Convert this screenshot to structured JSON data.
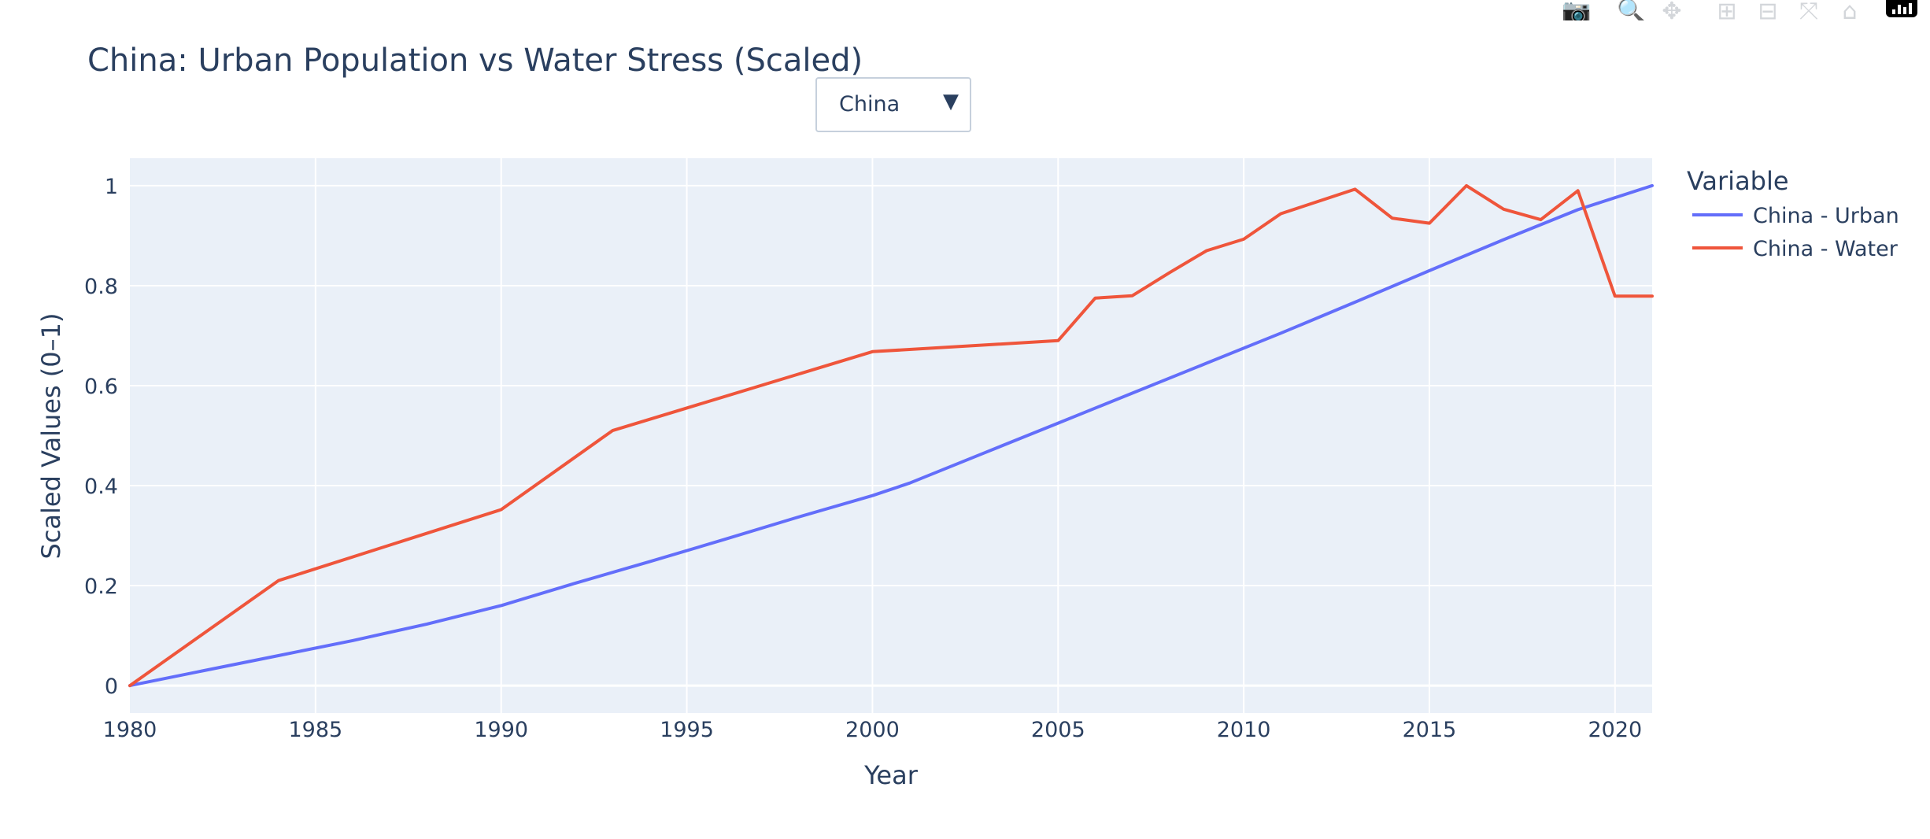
{
  "dropdown": {
    "selected": "China"
  },
  "modebar": {
    "icons": [
      "camera-icon",
      "zoom-icon",
      "pan-icon",
      "zoom-in-icon",
      "zoom-out-icon",
      "autoscale-icon",
      "home-icon",
      "plotly-logo"
    ]
  },
  "chart_data": {
    "type": "line",
    "title": "China: Urban Population vs Water Stress (Scaled)",
    "xlabel": "Year",
    "ylabel": "Scaled Values (0–1)",
    "xlim": [
      1980,
      2021
    ],
    "ylim": [
      -0.055,
      1.055
    ],
    "xticks": [
      1980,
      1985,
      1990,
      1995,
      2000,
      2005,
      2010,
      2015,
      2020
    ],
    "yticks": [
      0,
      0.2,
      0.4,
      0.6,
      0.8,
      1
    ],
    "ytick_labels": [
      "0",
      "0.2",
      "0.4",
      "0.6",
      "0.8",
      "1"
    ],
    "grid": true,
    "legend_title": "Variable",
    "legend_position": "right",
    "series": [
      {
        "name": "China - Urban",
        "color": "#636efa",
        "x": [
          1980,
          1982,
          1984,
          1986,
          1988,
          1990,
          1992,
          1994,
          1996,
          1998,
          2000,
          2001,
          2003,
          2005,
          2007,
          2009,
          2011,
          2013,
          2015,
          2017,
          2019,
          2021
        ],
        "y": [
          0,
          0.03,
          0.06,
          0.09,
          0.123,
          0.16,
          0.205,
          0.248,
          0.292,
          0.337,
          0.38,
          0.405,
          0.465,
          0.525,
          0.585,
          0.645,
          0.705,
          0.767,
          0.83,
          0.892,
          0.952,
          1
        ]
      },
      {
        "name": "China - Water",
        "color": "#ef553b",
        "x": [
          1980,
          1984,
          1990,
          1993,
          2000,
          2005,
          2006,
          2007,
          2008,
          2009,
          2010,
          2011,
          2013,
          2014,
          2015,
          2016,
          2017,
          2018,
          2019,
          2020,
          2021
        ],
        "y": [
          0,
          0.21,
          0.352,
          0.51,
          0.668,
          0.69,
          0.775,
          0.78,
          0.826,
          0.87,
          0.893,
          0.944,
          0.993,
          0.935,
          0.925,
          1,
          0.953,
          0.932,
          0.99,
          0.779,
          0.779
        ]
      }
    ]
  }
}
